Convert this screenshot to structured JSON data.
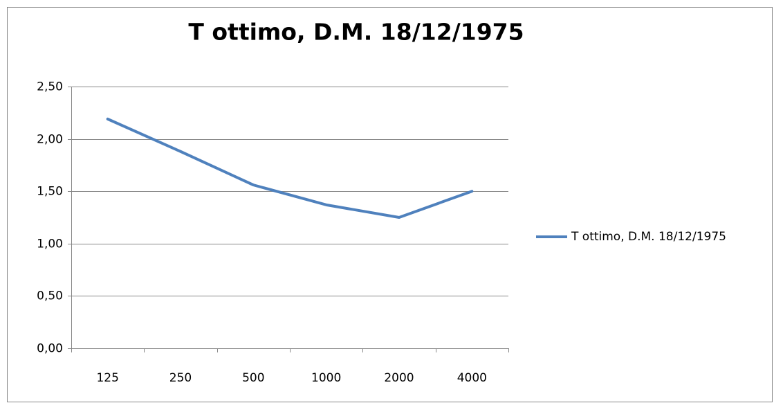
{
  "chart_data": {
    "type": "line",
    "title": "T ottimo, D.M. 18/12/1975",
    "categories": [
      "125",
      "250",
      "500",
      "1000",
      "2000",
      "4000"
    ],
    "series": [
      {
        "name": "T ottimo, D.M. 18/12/1975",
        "color": "#4f81bd",
        "values": [
          2.19,
          1.88,
          1.56,
          1.37,
          1.25,
          1.5
        ]
      }
    ],
    "ylim": [
      0,
      2.5
    ],
    "yticks": [
      {
        "value": 0,
        "label": "0,00"
      },
      {
        "value": 0.5,
        "label": "0,50"
      },
      {
        "value": 1,
        "label": "1,00"
      },
      {
        "value": 1.5,
        "label": "1,50"
      },
      {
        "value": 2,
        "label": "2,00"
      },
      {
        "value": 2.5,
        "label": "2,50"
      }
    ],
    "grid": true,
    "legend": "right"
  }
}
